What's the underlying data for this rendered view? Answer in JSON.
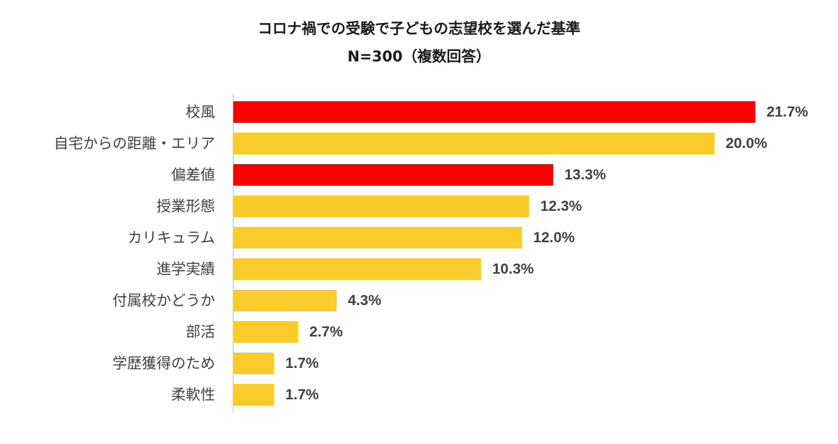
{
  "chart_data": {
    "type": "bar",
    "orientation": "horizontal",
    "title": "コロナ禍での受験で子どもの志望校を選んだ基準",
    "subtitle": "N=300（複数回答）",
    "value_suffix": "%",
    "xlim": [
      0,
      22
    ],
    "grid": false,
    "legend": "none",
    "colors": {
      "highlight": "#ff0000",
      "default": "#f9cb2b",
      "axis": "#d0d0d0"
    },
    "categories": [
      "校風",
      "自宅からの距離・エリア",
      "偏差値",
      "授業形態",
      "カリキュラム",
      "進学実績",
      "付属校かどうか",
      "部活",
      "学歴獲得のため",
      "柔軟性"
    ],
    "values": [
      21.7,
      20.0,
      13.3,
      12.3,
      12.0,
      10.3,
      4.3,
      2.7,
      1.7,
      1.7
    ],
    "highlighted": [
      true,
      false,
      true,
      false,
      false,
      false,
      false,
      false,
      false,
      false
    ]
  }
}
